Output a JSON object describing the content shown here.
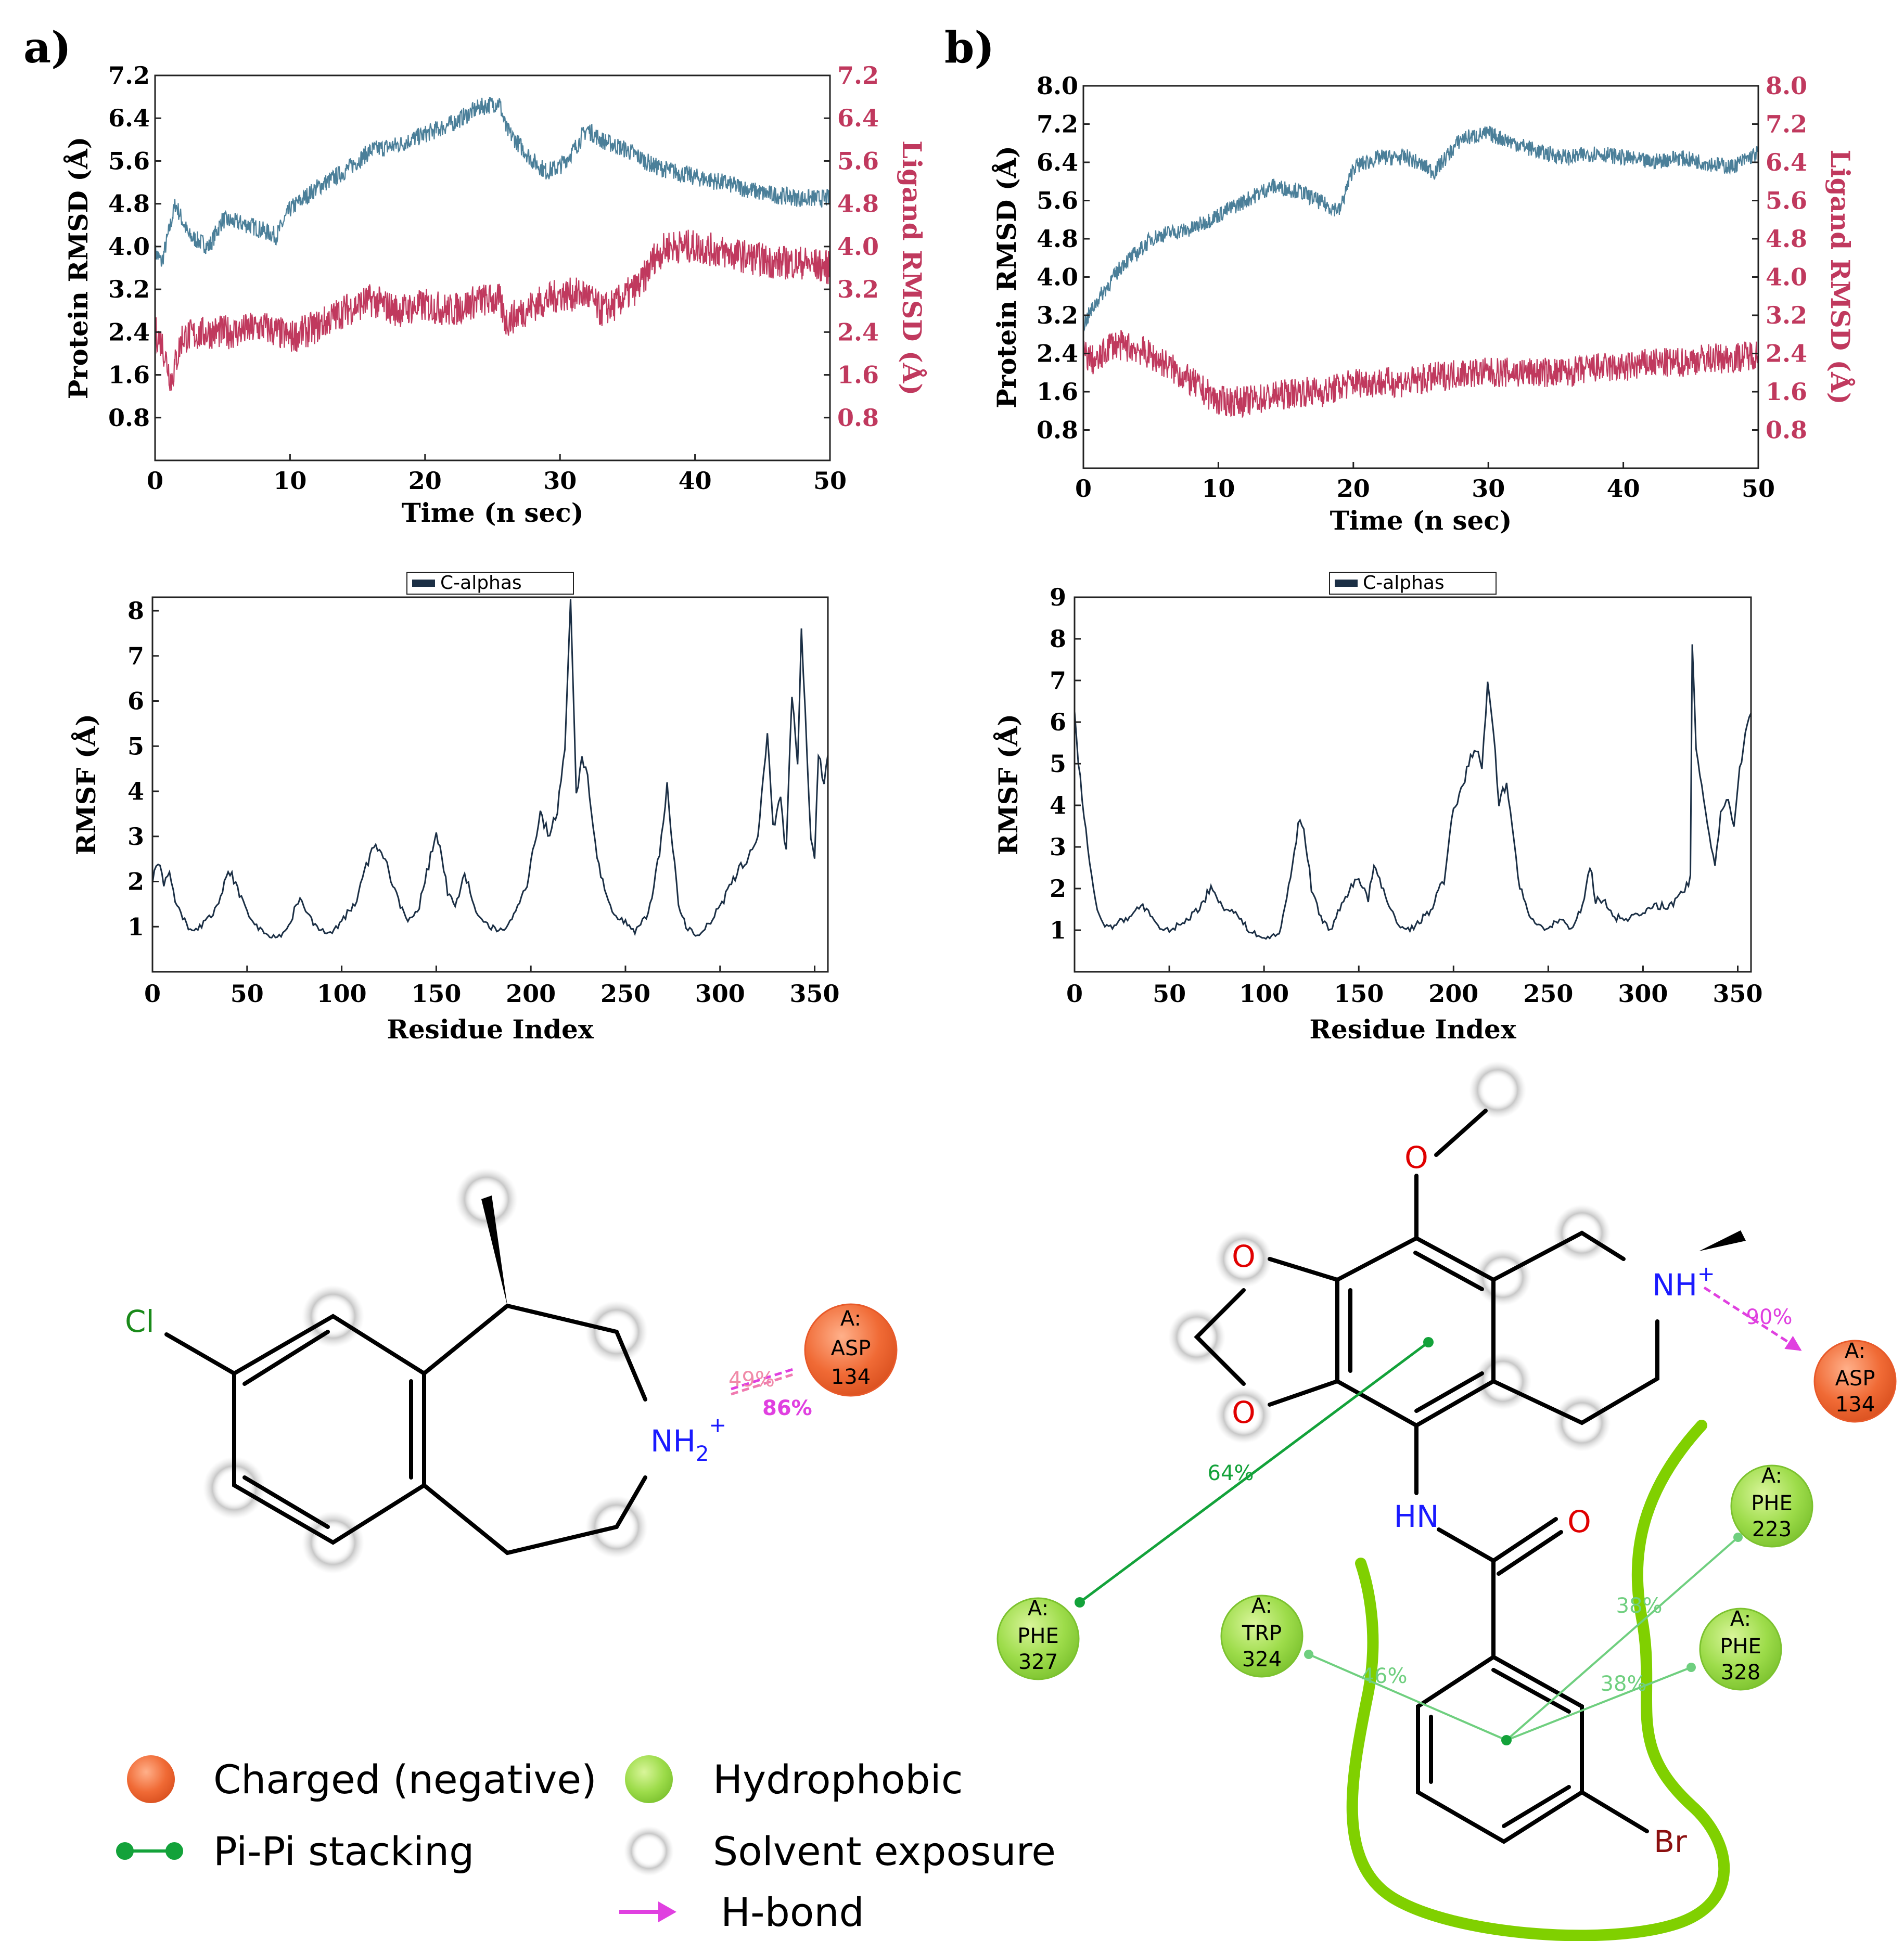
{
  "panels": {
    "a": "a)",
    "b": "b)"
  },
  "colors": {
    "protein": "#4b7f99",
    "ligand": "#c0395e",
    "rmsf": "#1b2f45",
    "charged": "#f06a35",
    "hydrophobic": "#8fd43a",
    "pipi": "#13a23a",
    "hbond": "#e040e0",
    "solvent": "#bdbdbd",
    "pocket": "#80d000",
    "nitrogen": "#1a1aff",
    "oxygen": "#e00000",
    "chlorine": "#1a8a1a",
    "bromine": "#8b1010"
  },
  "chart_data": [
    {
      "id": "rmsd_a",
      "type": "line",
      "xlabel": "Time (n sec)",
      "ylabel_left": "Protein RMSD (Å)",
      "ylabel_right": "Ligand RMSD (Å)",
      "xlim": [
        0,
        50
      ],
      "ylim_left": [
        0,
        7.2
      ],
      "ylim_right": [
        0,
        7.2
      ],
      "xticks": [
        0,
        10,
        20,
        30,
        40,
        50
      ],
      "yticks_left": [
        0.8,
        1.6,
        2.4,
        3.2,
        4.0,
        4.8,
        5.6,
        6.4,
        7.2
      ],
      "yticks_right": [
        0.8,
        1.6,
        2.4,
        3.2,
        4.0,
        4.8,
        5.6,
        6.4,
        7.2
      ],
      "series": [
        {
          "name": "Protein RMSD",
          "axis": "left",
          "x": [
            0,
            0.5,
            1.5,
            2.5,
            4,
            5,
            7,
            9,
            10,
            12,
            14,
            16,
            18,
            20,
            22,
            24,
            25.5,
            26,
            27,
            28,
            29,
            30,
            31,
            32,
            33,
            35,
            37,
            40,
            42,
            45,
            48,
            50
          ],
          "y": [
            3.9,
            3.7,
            4.8,
            4.2,
            4.0,
            4.5,
            4.4,
            4.2,
            4.7,
            5.1,
            5.4,
            5.8,
            5.9,
            6.1,
            6.3,
            6.6,
            6.7,
            6.2,
            5.9,
            5.6,
            5.4,
            5.5,
            5.8,
            6.2,
            6.0,
            5.8,
            5.5,
            5.3,
            5.2,
            5.0,
            4.9,
            4.9
          ]
        },
        {
          "name": "Ligand RMSD",
          "axis": "right",
          "x": [
            0,
            0.5,
            1.2,
            2,
            4,
            6,
            8,
            10,
            12,
            14,
            16,
            18,
            20,
            22,
            24,
            25.5,
            26,
            28,
            30,
            32,
            33,
            34,
            36,
            37,
            38,
            40,
            42,
            44,
            46,
            48,
            50
          ],
          "y": [
            2.4,
            2.2,
            1.5,
            2.3,
            2.4,
            2.4,
            2.5,
            2.3,
            2.5,
            2.8,
            3.0,
            2.8,
            2.9,
            2.8,
            3.0,
            3.0,
            2.6,
            2.9,
            3.1,
            3.1,
            2.8,
            2.9,
            3.3,
            3.8,
            4.0,
            4.0,
            3.9,
            3.8,
            3.7,
            3.7,
            3.6
          ]
        }
      ]
    },
    {
      "id": "rmsd_b",
      "type": "line",
      "xlabel": "Time (n sec)",
      "ylabel_left": "Protein RMSD (Å)",
      "ylabel_right": "Ligand RMSD (Å)",
      "xlim": [
        0,
        50
      ],
      "ylim_left": [
        0,
        8.0
      ],
      "ylim_right": [
        0,
        8.0
      ],
      "xticks": [
        0,
        10,
        20,
        30,
        40,
        50
      ],
      "yticks_left": [
        0.8,
        1.6,
        2.4,
        3.2,
        4.0,
        4.8,
        5.6,
        6.4,
        7.2,
        8.0
      ],
      "yticks_right": [
        0.8,
        1.6,
        2.4,
        3.2,
        4.0,
        4.8,
        5.6,
        6.4,
        7.2,
        8.0
      ],
      "series": [
        {
          "name": "Protein RMSD",
          "axis": "left",
          "x": [
            0,
            1,
            2,
            3,
            4,
            5,
            6,
            8,
            10,
            12,
            14,
            16,
            18,
            19,
            20,
            22,
            24,
            26,
            28,
            30,
            32,
            34,
            36,
            38,
            40,
            42,
            44,
            46,
            48,
            50
          ],
          "y": [
            3.0,
            3.5,
            3.9,
            4.3,
            4.5,
            4.8,
            4.9,
            5.0,
            5.3,
            5.6,
            5.9,
            5.8,
            5.5,
            5.4,
            6.3,
            6.5,
            6.5,
            6.2,
            6.9,
            7.0,
            6.8,
            6.6,
            6.5,
            6.6,
            6.5,
            6.4,
            6.5,
            6.4,
            6.3,
            6.6
          ]
        },
        {
          "name": "Ligand RMSD",
          "axis": "right",
          "x": [
            0,
            1,
            2,
            4,
            6,
            8,
            10,
            12,
            14,
            16,
            18,
            20,
            22,
            24,
            26,
            28,
            30,
            32,
            34,
            36,
            38,
            40,
            42,
            44,
            46,
            48,
            50
          ],
          "y": [
            2.4,
            2.2,
            2.6,
            2.5,
            2.2,
            1.8,
            1.4,
            1.4,
            1.5,
            1.6,
            1.6,
            1.8,
            1.8,
            1.8,
            1.9,
            2.0,
            2.0,
            2.0,
            2.0,
            2.0,
            2.1,
            2.1,
            2.2,
            2.2,
            2.3,
            2.3,
            2.4
          ]
        }
      ]
    },
    {
      "id": "rmsf_a",
      "type": "line",
      "xlabel": "Residue Index",
      "ylabel": "RMSF (Å)",
      "legend": "C-alphas",
      "xlim": [
        0,
        357
      ],
      "ylim": [
        0,
        8.3
      ],
      "xticks": [
        0,
        50,
        100,
        150,
        200,
        250,
        300,
        350
      ],
      "yticks": [
        1,
        2,
        3,
        4,
        5,
        6,
        7,
        8
      ],
      "series": [
        {
          "name": "C-alphas",
          "x": [
            0,
            3,
            6,
            9,
            12,
            16,
            20,
            25,
            30,
            35,
            40,
            44,
            48,
            55,
            62,
            68,
            72,
            78,
            82,
            88,
            95,
            100,
            108,
            115,
            120,
            125,
            130,
            135,
            140,
            145,
            150,
            153,
            156,
            160,
            165,
            168,
            172,
            178,
            185,
            192,
            198,
            202,
            205,
            210,
            214,
            218,
            221,
            224,
            227,
            230,
            235,
            240,
            245,
            250,
            255,
            262,
            268,
            272,
            275,
            278,
            282,
            288,
            295,
            302,
            308,
            314,
            320,
            325,
            328,
            332,
            335,
            338,
            341,
            343,
            346,
            348,
            350,
            352,
            355,
            357
          ],
          "y": [
            2.0,
            2.5,
            2.0,
            2.3,
            1.5,
            1.2,
            0.9,
            1.0,
            1.2,
            1.5,
            2.2,
            2.0,
            1.5,
            1.0,
            0.8,
            0.8,
            1.0,
            1.7,
            1.3,
            0.9,
            0.9,
            1.1,
            1.6,
            2.6,
            2.8,
            2.2,
            1.6,
            1.1,
            1.3,
            2.2,
            3.1,
            2.5,
            1.8,
            1.4,
            2.2,
            1.8,
            1.2,
            1.0,
            0.9,
            1.3,
            2.0,
            2.9,
            3.5,
            3.0,
            3.6,
            5.0,
            8.3,
            3.9,
            4.8,
            4.3,
            2.5,
            1.6,
            1.2,
            1.1,
            0.9,
            1.3,
            2.6,
            4.1,
            2.8,
            1.5,
            1.0,
            0.8,
            1.1,
            1.6,
            2.1,
            2.5,
            3.0,
            5.3,
            3.2,
            3.8,
            2.6,
            6.2,
            4.5,
            7.5,
            4.8,
            3.0,
            2.6,
            4.8,
            4.2,
            4.8
          ]
        }
      ]
    },
    {
      "id": "rmsf_b",
      "type": "line",
      "xlabel": "Residue Index",
      "ylabel": "RMSF (Å)",
      "legend": "C-alphas",
      "xlim": [
        0,
        357
      ],
      "ylim": [
        0,
        9
      ],
      "xticks": [
        0,
        50,
        100,
        150,
        200,
        250,
        300,
        350
      ],
      "yticks": [
        1,
        2,
        3,
        4,
        5,
        6,
        7,
        8,
        9
      ],
      "series": [
        {
          "name": "C-alphas",
          "x": [
            0,
            2,
            5,
            8,
            12,
            16,
            20,
            28,
            35,
            40,
            45,
            50,
            58,
            65,
            72,
            78,
            85,
            92,
            100,
            108,
            115,
            118,
            121,
            125,
            130,
            135,
            140,
            145,
            150,
            155,
            158,
            162,
            166,
            170,
            175,
            180,
            188,
            195,
            200,
            205,
            208,
            212,
            215,
            218,
            221,
            224,
            228,
            232,
            235,
            240,
            245,
            250,
            256,
            262,
            268,
            272,
            275,
            280,
            285,
            292,
            300,
            308,
            316,
            322,
            325,
            326,
            328,
            332,
            336,
            338,
            341,
            345,
            348,
            351,
            354,
            357
          ],
          "y": [
            6.3,
            5.0,
            3.8,
            2.5,
            1.5,
            1.1,
            1.1,
            1.3,
            1.6,
            1.4,
            1.0,
            1.0,
            1.2,
            1.5,
            2.0,
            1.6,
            1.4,
            1.0,
            0.8,
            0.9,
            2.5,
            3.6,
            3.5,
            2.0,
            1.3,
            1.0,
            1.5,
            2.0,
            2.3,
            1.7,
            2.6,
            2.0,
            1.6,
            1.2,
            1.0,
            1.1,
            1.5,
            2.2,
            3.9,
            4.5,
            5.0,
            5.4,
            4.8,
            7.0,
            5.8,
            4.1,
            4.5,
            3.2,
            2.0,
            1.4,
            1.1,
            1.0,
            1.3,
            1.0,
            1.6,
            2.6,
            1.7,
            1.7,
            1.3,
            1.3,
            1.4,
            1.6,
            1.6,
            2.0,
            2.2,
            7.8,
            5.4,
            4.2,
            3.0,
            2.6,
            3.8,
            4.2,
            3.5,
            4.8,
            5.8,
            6.2
          ]
        }
      ]
    }
  ],
  "diagram_a": {
    "atoms": {
      "cl": "Cl",
      "nh2": "NH",
      "nh2_sub": "2",
      "nh2_sup": "+"
    },
    "residue": {
      "line1": "A:",
      "line2": "ASP",
      "line3": "134"
    },
    "hbond_labels": {
      "first": "49%",
      "second": "86%"
    }
  },
  "diagram_b": {
    "atoms": {
      "o_methoxy": "O",
      "o_ring_top": "O",
      "o_ring_bottom": "O",
      "nh_plus": "NH",
      "nh_plus_sup": "+",
      "hn": "HN",
      "o_carbonyl": "O",
      "br": "Br"
    },
    "residues": [
      {
        "line1": "A:",
        "line2": "ASP",
        "line3": "134"
      },
      {
        "line1": "A:",
        "line2": "PHE",
        "line3": "223"
      },
      {
        "line1": "A:",
        "line2": "PHE",
        "line3": "327"
      },
      {
        "line1": "A:",
        "line2": "TRP",
        "line3": "324"
      },
      {
        "line1": "A:",
        "line2": "PHE",
        "line3": "328"
      }
    ],
    "interaction_labels": {
      "hbond": "90%",
      "pipi_phe327": "64%",
      "phe223": "38%",
      "trp324": "46%",
      "phe328": "38%"
    }
  },
  "legend": {
    "charged": "Charged (negative)",
    "hydrophobic": "Hydrophobic",
    "pipi": "Pi-Pi stacking",
    "solvent": "Solvent exposure",
    "hbond": "H-bond"
  }
}
